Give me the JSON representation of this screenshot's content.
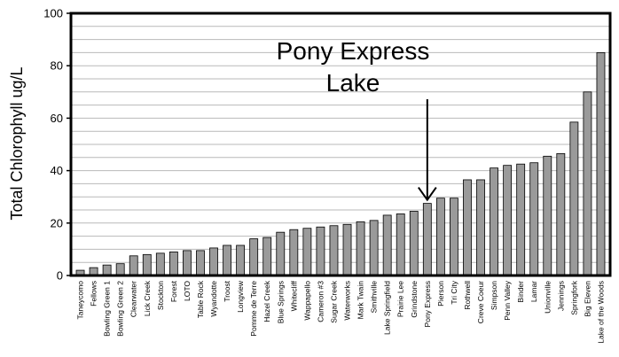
{
  "chart_data": {
    "type": "bar",
    "ylabel": "Total Chlorophyll ug/L",
    "ylim": [
      0,
      100
    ],
    "yticks": [
      0,
      20,
      40,
      60,
      80,
      100
    ],
    "grid": true,
    "bar_color": "#9a9a9a",
    "categories": [
      "Taneycomo",
      "Fellows",
      "Bowling Green 1",
      "Bowling Green 2",
      "Clearwater",
      "Lick Creek",
      "Stockton",
      "Forest",
      "LOTO",
      "Table Rock",
      "Wyandotte",
      "Troost",
      "Longview",
      "Pomme de Terre",
      "Hazel Creek",
      "Blue Springs",
      "Whitecliff",
      "Wappapello",
      "Cameron #3",
      "Sugar Creek",
      "Waterworks",
      "Mark Twain",
      "Smithville",
      "Lake Springfield",
      "Prairie Lee",
      "Grindstone",
      "Pony Express",
      "Pierson",
      "Tri City",
      "Rothwell",
      "Creve Coeur",
      "Simpson",
      "Penn Valley",
      "Binder",
      "Lamar",
      "Unionville",
      "Jennings",
      "Springfork",
      "Big Eleven",
      "Lake of the Woods"
    ],
    "values": [
      2,
      3,
      4,
      4.5,
      7.5,
      8,
      8.5,
      9,
      9.5,
      9.5,
      10.5,
      11.5,
      11.5,
      14,
      14.5,
      16.5,
      17.5,
      18,
      18.5,
      19,
      19.5,
      20.5,
      21,
      23,
      23.5,
      24.5,
      27.5,
      29.5,
      29.5,
      36.5,
      36.5,
      41,
      42,
      42.5,
      43,
      45.5,
      46.5,
      58.5,
      70,
      85
    ],
    "annotation": {
      "lines": [
        "Pony Express",
        "Lake"
      ],
      "target": "Pony Express"
    }
  }
}
